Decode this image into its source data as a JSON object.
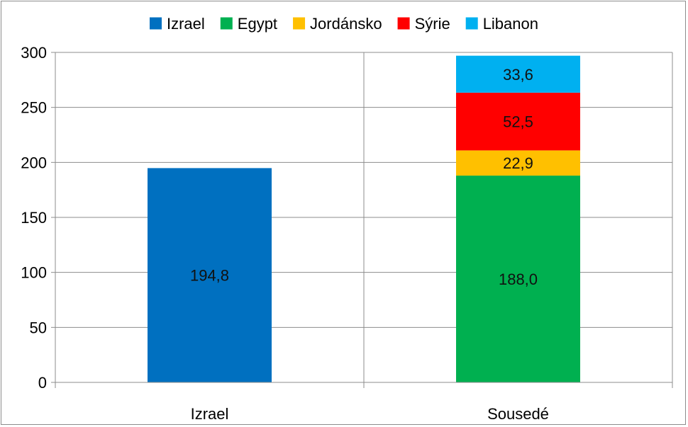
{
  "chart_data": {
    "type": "bar",
    "stacked": true,
    "categories": [
      "Izrael",
      "Sousedé"
    ],
    "series": [
      {
        "name": "Izrael",
        "color": "#0070C0",
        "values": [
          194.8,
          null
        ],
        "labels": [
          "194,8",
          ""
        ]
      },
      {
        "name": "Egypt",
        "color": "#00B050",
        "values": [
          null,
          188.0
        ],
        "labels": [
          "",
          "188,0"
        ]
      },
      {
        "name": "Jordánsko",
        "color": "#FFC000",
        "values": [
          null,
          22.9
        ],
        "labels": [
          "",
          "22,9"
        ]
      },
      {
        "name": "Sýrie",
        "color": "#FF0000",
        "values": [
          null,
          52.5
        ],
        "labels": [
          "",
          "52,5"
        ]
      },
      {
        "name": "Libanon",
        "color": "#00B0F0",
        "values": [
          null,
          33.6
        ],
        "labels": [
          "",
          "33,6"
        ]
      }
    ],
    "ylim": [
      0,
      300
    ],
    "yticks": [
      0,
      50,
      100,
      150,
      200,
      250,
      300
    ],
    "grid": true,
    "legend_position": "top"
  }
}
